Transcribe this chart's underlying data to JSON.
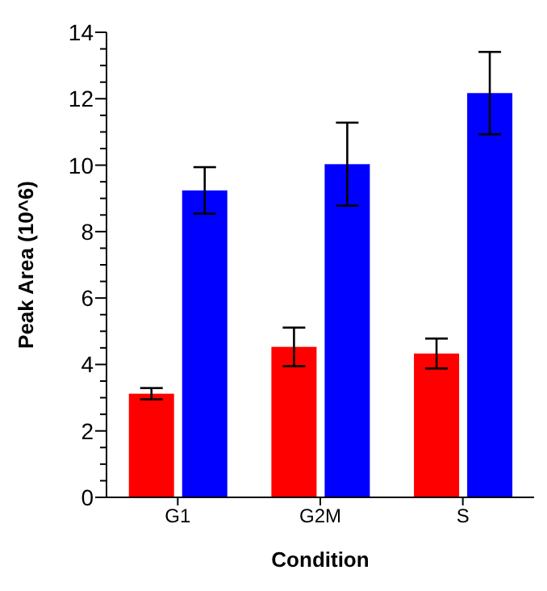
{
  "chart_data": {
    "type": "bar",
    "xlabel": "Condition",
    "ylabel": "Peak Area (10^6)",
    "categories": [
      "G1",
      "G2M",
      "S"
    ],
    "series": [
      {
        "color": "#ff0000",
        "values": [
          3.12,
          4.53,
          4.33
        ],
        "errors": [
          0.17,
          0.58,
          0.45
        ]
      },
      {
        "color": "#0000ff",
        "values": [
          9.24,
          10.03,
          12.17
        ],
        "errors": [
          0.7,
          1.25,
          1.24
        ]
      }
    ],
    "ylim": [
      0,
      14
    ],
    "yticks": [
      0,
      {
        "value": 0.5,
        "label": null
      },
      {
        "value": 1,
        "label": null
      },
      {
        "value": 1.5,
        "label": null
      },
      2,
      {
        "value": 2.5,
        "label": null
      },
      {
        "value": 3,
        "label": null
      },
      {
        "value": 3.5,
        "label": null
      },
      4,
      {
        "value": 4.5,
        "label": null
      },
      {
        "value": 5,
        "label": null
      },
      {
        "value": 5.5,
        "label": null
      },
      6,
      {
        "value": 6.5,
        "label": null
      },
      {
        "value": 7,
        "label": null
      },
      {
        "value": 7.5,
        "label": null
      },
      8,
      {
        "value": 8.5,
        "label": null
      },
      {
        "value": 9,
        "label": null
      },
      {
        "value": 9.5,
        "label": null
      },
      10,
      {
        "value": 10.5,
        "label": null
      },
      {
        "value": 11,
        "label": null
      },
      {
        "value": 11.5,
        "label": null
      },
      12,
      {
        "value": 12.5,
        "label": null
      },
      {
        "value": 13,
        "label": null
      },
      {
        "value": 13.5,
        "label": null
      },
      14
    ],
    "grid": false,
    "legend": false
  }
}
